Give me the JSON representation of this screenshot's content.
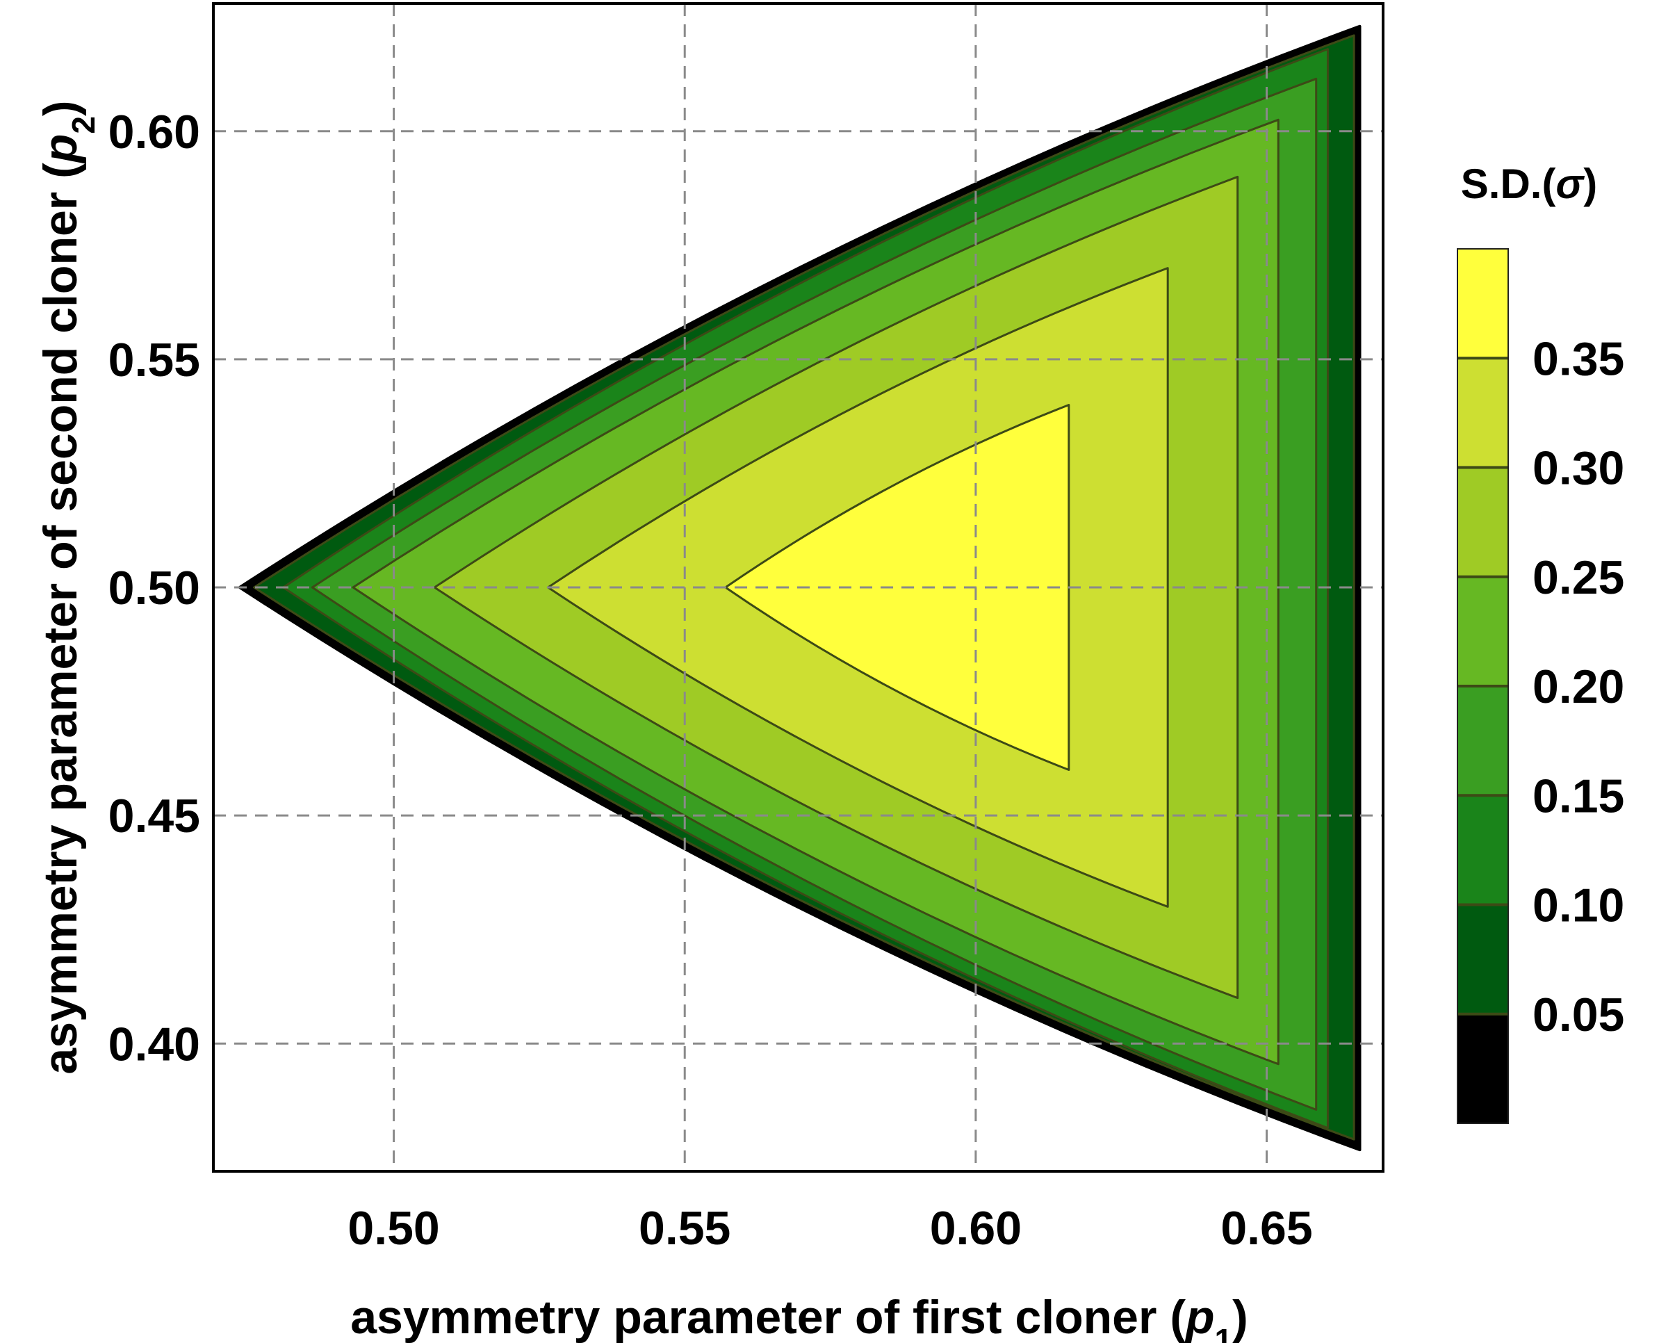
{
  "chart_data": {
    "type": "contour",
    "xlabel": "asymmetry parameter of first cloner (p1)",
    "ylabel": "asymmetry parameter of second cloner (p2)",
    "xlabel_parts": {
      "text": "asymmetry parameter of first cloner (",
      "var": "p",
      "sub": "1",
      "close": ")"
    },
    "ylabel_parts": {
      "text": "asymmetry parameter of second cloner (",
      "var": "p",
      "sub": "2",
      "close": ")"
    },
    "xlim": [
      0.469,
      0.67
    ],
    "ylim": [
      0.372,
      0.628
    ],
    "x_ticks": [
      0.5,
      0.55,
      0.6,
      0.65
    ],
    "x_tick_labels": [
      "0.50",
      "0.55",
      "0.60",
      "0.65"
    ],
    "y_ticks": [
      0.4,
      0.45,
      0.5,
      0.55,
      0.6
    ],
    "y_tick_labels": [
      "0.40",
      "0.45",
      "0.50",
      "0.55",
      "0.60"
    ],
    "grid": "dashed",
    "colorbar": {
      "title": "S.D.(σ)",
      "title_parts": {
        "text": "S.D.(",
        "var": "σ",
        "close": ")"
      },
      "range": [
        0,
        0.4
      ],
      "levels": [
        0.05,
        0.1,
        0.15,
        0.2,
        0.25,
        0.3,
        0.35
      ],
      "labels": [
        "0.05",
        "0.10",
        "0.15",
        "0.20",
        "0.25",
        "0.30",
        "0.35"
      ],
      "colors": [
        "#000000",
        "#005a10",
        "#1a841a",
        "#3a9e22",
        "#66b823",
        "#9fcb25",
        "#cddf32",
        "#ffff3c"
      ]
    },
    "regions": [
      {
        "level": 0.0,
        "color": "#000000",
        "tip_x": 0.4735,
        "right_x": 0.666,
        "top_y": 0.623,
        "bottom_y": 0.3767
      },
      {
        "level": 0.05,
        "color": "#005a10",
        "tip_x": 0.476,
        "right_x": 0.665,
        "top_y": 0.621,
        "bottom_y": 0.379
      },
      {
        "level": 0.1,
        "color": "#1a841a",
        "tip_x": 0.481,
        "right_x": 0.6605,
        "top_y": 0.618,
        "bottom_y": 0.3815
      },
      {
        "level": 0.15,
        "color": "#3a9e22",
        "tip_x": 0.486,
        "right_x": 0.6585,
        "top_y": 0.6115,
        "bottom_y": 0.3855
      },
      {
        "level": 0.2,
        "color": "#66b823",
        "tip_x": 0.493,
        "right_x": 0.652,
        "top_y": 0.6025,
        "bottom_y": 0.3955
      },
      {
        "level": 0.25,
        "color": "#9fcb25",
        "tip_x": 0.507,
        "right_x": 0.645,
        "top_y": 0.59,
        "bottom_y": 0.41
      },
      {
        "level": 0.3,
        "color": "#cddf32",
        "tip_x": 0.5265,
        "right_x": 0.633,
        "top_y": 0.57,
        "bottom_y": 0.43
      },
      {
        "level": 0.35,
        "color": "#ffff3c",
        "tip_x": 0.557,
        "right_x": 0.616,
        "top_y": 0.54,
        "bottom_y": 0.46
      }
    ]
  }
}
